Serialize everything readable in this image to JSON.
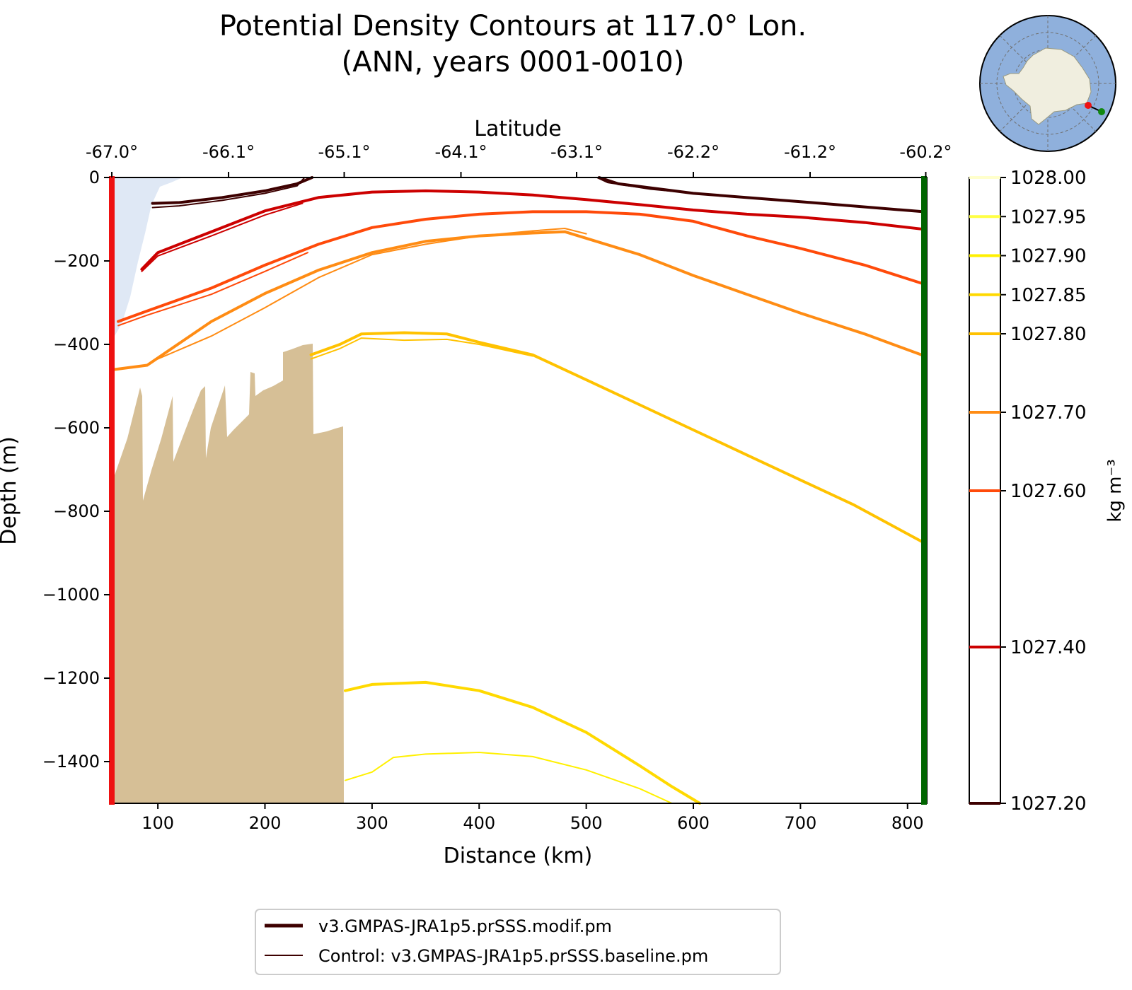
{
  "title_line1": "Potential Density Contours at 117.0° Lon.",
  "title_line2": "(ANN, years 0001-0010)",
  "chart_data": {
    "type": "line",
    "subtype": "contour-section",
    "title": "Potential Density Contours at 117.0° Lon. (ANN, years 0001-0010)",
    "xlabel": "Distance (km)",
    "ylabel": "Depth (m)",
    "top_xlabel": "Latitude",
    "xlim": [
      55,
      818
    ],
    "ylim": [
      -1500,
      0
    ],
    "x_ticks": [
      100,
      200,
      300,
      400,
      500,
      600,
      700,
      800
    ],
    "y_ticks": [
      0,
      -200,
      -400,
      -600,
      -800,
      -1000,
      -1200,
      -1400
    ],
    "y_tick_labels": [
      "0",
      "−200",
      "−400",
      "−600",
      "−800",
      "−1000",
      "−1200",
      "−1400"
    ],
    "lat_ticks": [
      {
        "km": 57,
        "label": "-67.0°"
      },
      {
        "km": 166,
        "label": "-66.1°"
      },
      {
        "km": 274,
        "label": "-65.1°"
      },
      {
        "km": 383,
        "label": "-64.1°"
      },
      {
        "km": 491,
        "label": "-63.1°"
      },
      {
        "km": 600,
        "label": "-62.2°"
      },
      {
        "km": 709,
        "label": "-61.2°"
      },
      {
        "km": 817,
        "label": "-60.2°"
      }
    ],
    "colorbar": {
      "label": "kg m⁻³",
      "levels": [
        {
          "value": "1027.20",
          "color": "#3d0000"
        },
        {
          "value": "1027.40",
          "color": "#cc0000"
        },
        {
          "value": "1027.60",
          "color": "#ff4a0a"
        },
        {
          "value": "1027.70",
          "color": "#ff8c14"
        },
        {
          "value": "1027.80",
          "color": "#ffc200"
        },
        {
          "value": "1027.85",
          "color": "#ffd900"
        },
        {
          "value": "1027.90",
          "color": "#fff000"
        },
        {
          "value": "1027.95",
          "color": "#ffff44"
        },
        {
          "value": "1028.00",
          "color": "#ffffcc"
        }
      ]
    },
    "series": [
      {
        "name": "modif 1027.20 a",
        "level": "1027.20",
        "run": "modif",
        "color": "#3d0000",
        "x": [
          95,
          120,
          160,
          200,
          230,
          244
        ],
        "y": [
          -62,
          -60,
          -48,
          -32,
          -15,
          0
        ]
      },
      {
        "name": "modif 1027.20 b",
        "level": "1027.20",
        "run": "modif",
        "color": "#3d0000",
        "x": [
          512,
          530,
          600,
          700,
          815
        ],
        "y": [
          0,
          -15,
          -38,
          -58,
          -82
        ]
      },
      {
        "name": "modif 1027.40",
        "level": "1027.40",
        "run": "modif",
        "color": "#cc0000",
        "x": [
          85,
          100,
          150,
          200,
          250,
          300,
          350,
          400,
          450,
          500,
          550,
          600,
          650,
          700,
          760,
          815
        ],
        "y": [
          -220,
          -180,
          -130,
          -80,
          -48,
          -35,
          -32,
          -35,
          -42,
          -53,
          -65,
          -78,
          -88,
          -95,
          -108,
          -124
        ]
      },
      {
        "name": "modif 1027.60",
        "level": "1027.60",
        "run": "modif",
        "color": "#ff4a0a",
        "x": [
          63,
          90,
          150,
          200,
          250,
          300,
          350,
          400,
          450,
          500,
          550,
          600,
          650,
          700,
          760,
          815
        ],
        "y": [
          -345,
          -320,
          -265,
          -210,
          -160,
          -120,
          -100,
          -88,
          -82,
          -82,
          -88,
          -105,
          -140,
          -170,
          -210,
          -255
        ]
      },
      {
        "name": "modif 1027.70",
        "level": "1027.70",
        "run": "modif",
        "color": "#ff8c14",
        "x": [
          60,
          90,
          150,
          200,
          250,
          300,
          350,
          400,
          450,
          480,
          550,
          600,
          650,
          700,
          760,
          815
        ],
        "y": [
          -460,
          -450,
          -345,
          -278,
          -222,
          -180,
          -153,
          -140,
          -133,
          -130,
          -185,
          -235,
          -280,
          -325,
          -375,
          -427
        ]
      },
      {
        "name": "modif 1027.80",
        "level": "1027.80",
        "run": "modif",
        "color": "#ffc200",
        "x": [
          243,
          270,
          290,
          330,
          370,
          400,
          450,
          500,
          550,
          600,
          650,
          700,
          750,
          815
        ],
        "y": [
          -425,
          -400,
          -375,
          -372,
          -375,
          -395,
          -425,
          -485,
          -545,
          -605,
          -665,
          -725,
          -785,
          -875
        ]
      },
      {
        "name": "modif 1027.85",
        "level": "1027.85",
        "run": "modif",
        "color": "#ffd900",
        "x": [
          275,
          300,
          350,
          400,
          450,
          500,
          550,
          580,
          606
        ],
        "y": [
          -1230,
          -1215,
          -1210,
          -1230,
          -1270,
          -1330,
          -1410,
          -1460,
          -1500
        ]
      },
      {
        "name": "control 1027.20 a",
        "level": "1027.20",
        "run": "control",
        "color": "#3d0000",
        "x": [
          95,
          120,
          160,
          200,
          230,
          237
        ],
        "y": [
          -72,
          -68,
          -55,
          -38,
          -20,
          0
        ]
      },
      {
        "name": "control 1027.20 b",
        "level": "1027.20",
        "run": "control",
        "color": "#3d0000",
        "x": [
          510,
          520,
          560,
          610
        ],
        "y": [
          0,
          -12,
          -28,
          -40
        ]
      },
      {
        "name": "control 1027.40",
        "level": "1027.40",
        "run": "control",
        "color": "#cc0000",
        "x": [
          85,
          100,
          150,
          200,
          235
        ],
        "y": [
          -225,
          -188,
          -140,
          -90,
          -62
        ]
      },
      {
        "name": "control 1027.60",
        "level": "1027.60",
        "run": "control",
        "color": "#ff4a0a",
        "x": [
          63,
          90,
          150,
          200,
          240
        ],
        "y": [
          -355,
          -330,
          -280,
          -225,
          -180
        ]
      },
      {
        "name": "control 1027.70",
        "level": "1027.70",
        "run": "control",
        "color": "#ff8c14",
        "x": [
          100,
          150,
          200,
          250,
          300,
          350,
          400,
          450,
          480,
          500
        ],
        "y": [
          -435,
          -380,
          -312,
          -240,
          -185,
          -160,
          -140,
          -128,
          -122,
          -135
        ]
      },
      {
        "name": "control 1027.80",
        "level": "1027.80",
        "run": "control",
        "color": "#ffc200",
        "x": [
          243,
          270,
          290,
          330,
          370,
          400,
          450
        ],
        "y": [
          -435,
          -410,
          -385,
          -390,
          -388,
          -400,
          -428
        ]
      },
      {
        "name": "control 1027.90",
        "level": "1027.90",
        "run": "control",
        "color": "#fff000",
        "x": [
          275,
          300,
          320,
          350,
          400,
          450,
          500,
          550,
          580
        ],
        "y": [
          -1445,
          -1425,
          -1390,
          -1382,
          -1378,
          -1388,
          -1420,
          -1465,
          -1500
        ]
      }
    ],
    "section_ends": {
      "south_color": "#ee1111",
      "north_color": "#006400"
    },
    "legend": {
      "placement": "bottom-center",
      "entries": [
        {
          "label": "v3.GMPAS-JRA1p5.prSSS.modif.pm",
          "style": "thick",
          "color": "#3d0000"
        },
        {
          "label": "Control: v3.GMPAS-JRA1p5.prSSS.baseline.pm",
          "style": "thin",
          "color": "#3d0000"
        }
      ]
    },
    "colors": {
      "ice_shelf": "#dfe8f5",
      "bathymetry": "#d6bf96",
      "ocean_inset": "#8fb0dc",
      "land_inset": "#f0eedf"
    }
  }
}
